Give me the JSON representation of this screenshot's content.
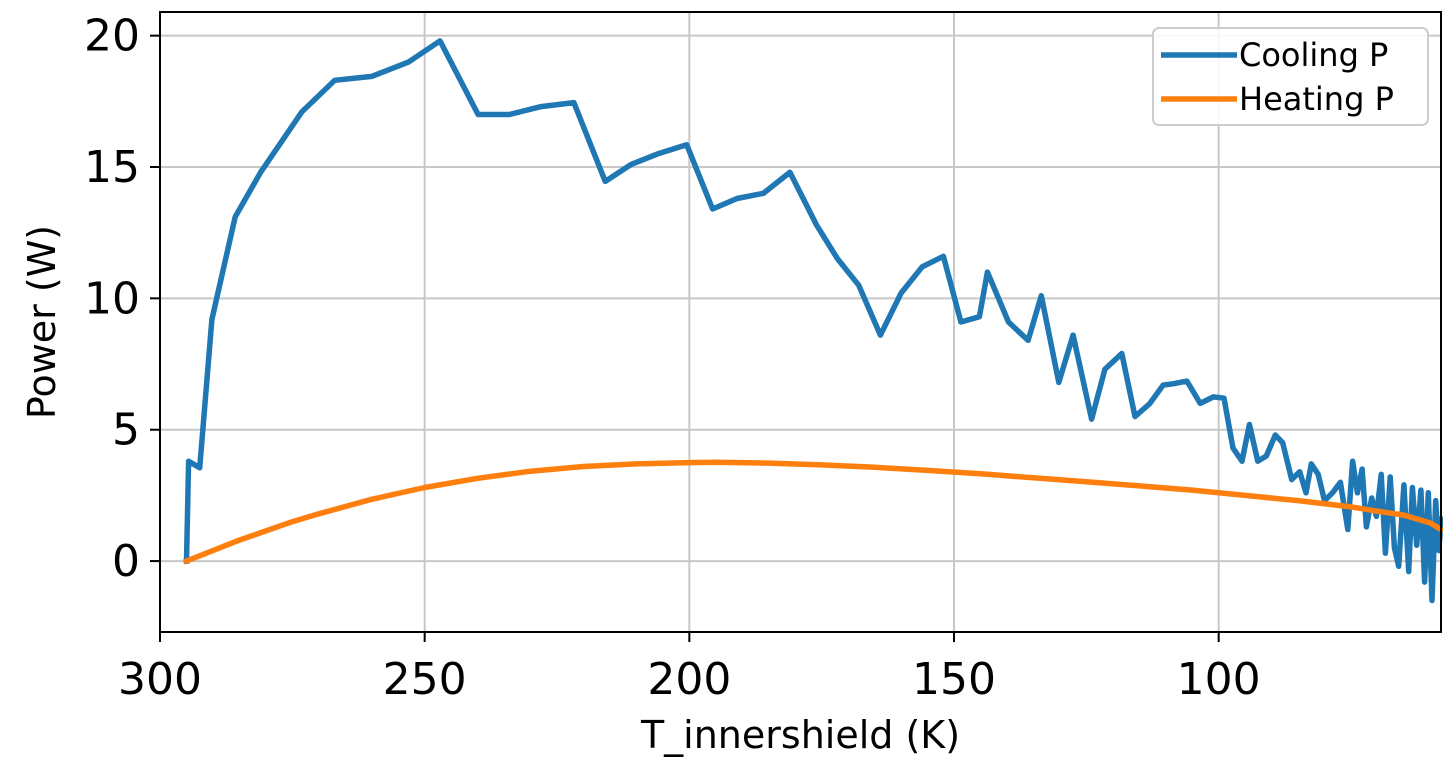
{
  "chart_data": {
    "type": "line",
    "title": "",
    "xlabel": "T_innershield (K)",
    "ylabel": "Power (W)",
    "xlim": [
      300,
      58
    ],
    "ylim": [
      -2.7,
      20.9
    ],
    "x_inverted": true,
    "grid": true,
    "legend_position": "top-right",
    "x_ticks": [
      "300",
      "250",
      "200",
      "150",
      "100"
    ],
    "y_ticks": [
      "0",
      "5",
      "10",
      "15",
      "20"
    ],
    "colors": {
      "cooling": "#1f77b4",
      "heating": "#ff7f0e"
    },
    "series": [
      {
        "name": "Cooling P",
        "color": "#1f77b4",
        "x": [
          295,
          294.6,
          292.5,
          290.2,
          285.8,
          281.0,
          273.2,
          267.0,
          260.0,
          253.0,
          247.1,
          239.9,
          234.0,
          228.0,
          221.8,
          215.9,
          211.0,
          206.0,
          200.5,
          195.6,
          191.0,
          186.0,
          181.0,
          176.0,
          172.0,
          168.0,
          163.9,
          160.0,
          156.0,
          152.0,
          148.7,
          145.2,
          143.7,
          139.7,
          136.0,
          133.5,
          130.2,
          127.5,
          124.0,
          121.5,
          118.3,
          115.8,
          113.0,
          110.5,
          108.5,
          106.0,
          103.5,
          101.0,
          99.0,
          97.3,
          95.6,
          94.2,
          92.6,
          91.0,
          89.3,
          87.9,
          86.2,
          84.7,
          83.5,
          82.5,
          81.2,
          80.0,
          78.5,
          77.0,
          75.6,
          74.7,
          73.8,
          72.9,
          72.1,
          71.1,
          70.2,
          69.3,
          68.5,
          67.6,
          66.8,
          66.0,
          65.0,
          64.1,
          63.4,
          62.6,
          61.8,
          61.1,
          60.4,
          59.7,
          59.0,
          58.4,
          58.0
        ],
        "y": [
          0,
          3.8,
          3.55,
          9.2,
          13.1,
          14.8,
          17.1,
          18.3,
          18.45,
          19.0,
          19.8,
          17.0,
          17.0,
          17.3,
          17.45,
          14.45,
          15.1,
          15.5,
          15.85,
          13.4,
          13.8,
          14.0,
          14.8,
          12.8,
          11.5,
          10.5,
          8.6,
          10.2,
          11.2,
          11.6,
          9.1,
          9.3,
          11.0,
          9.1,
          8.4,
          10.1,
          6.8,
          8.6,
          5.4,
          7.3,
          7.9,
          5.5,
          6.0,
          6.7,
          6.75,
          6.85,
          6.0,
          6.25,
          6.2,
          4.3,
          3.8,
          5.2,
          3.8,
          4.0,
          4.8,
          4.5,
          3.1,
          3.4,
          2.6,
          3.7,
          3.3,
          2.3,
          2.6,
          3.0,
          1.2,
          3.8,
          2.6,
          3.5,
          1.3,
          2.4,
          1.7,
          3.3,
          0.3,
          3.2,
          0.5,
          -0.2,
          2.9,
          -0.4,
          2.8,
          0.6,
          2.7,
          -0.8,
          2.6,
          -1.5,
          2.3,
          0.4,
          1.6
        ]
      },
      {
        "name": "Heating P",
        "color": "#ff7f0e",
        "x": [
          295,
          290,
          285,
          280,
          275,
          270,
          260,
          250,
          240,
          230,
          220,
          210,
          200,
          195,
          185,
          175,
          165,
          155,
          145,
          135,
          125,
          115,
          105,
          95,
          85,
          75,
          70,
          65,
          60,
          58
        ],
        "y": [
          0,
          0.4,
          0.8,
          1.15,
          1.5,
          1.8,
          2.35,
          2.8,
          3.15,
          3.42,
          3.6,
          3.7,
          3.75,
          3.76,
          3.73,
          3.66,
          3.57,
          3.45,
          3.32,
          3.17,
          3.02,
          2.86,
          2.7,
          2.5,
          2.3,
          2.06,
          1.9,
          1.75,
          1.45,
          1.2
        ]
      }
    ]
  }
}
